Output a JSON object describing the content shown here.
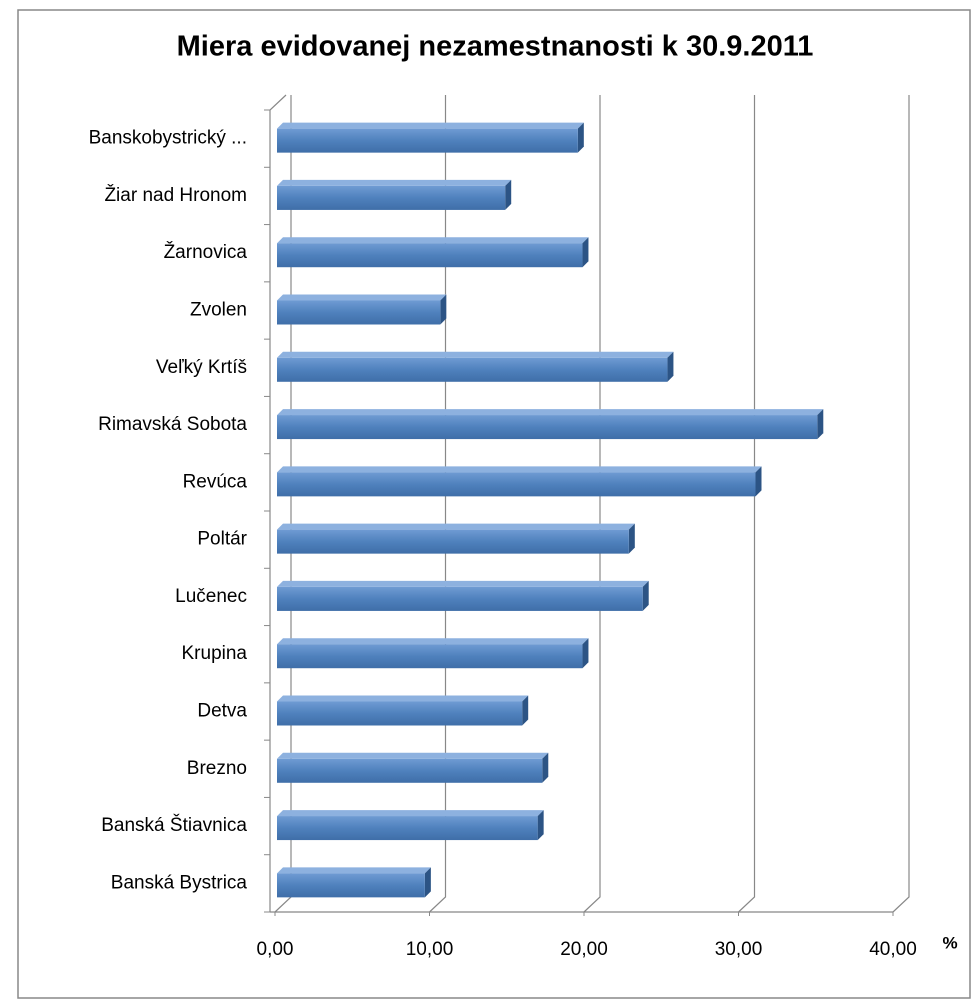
{
  "chart_data": {
    "type": "bar",
    "orientation": "horizontal",
    "title": "Miera evidovanej nezamestnanosti k 30.9.2011",
    "x_unit": "%",
    "categories": [
      "Banská Bystrica",
      "Banská Štiavnica",
      "Brezno",
      "Detva",
      "Krupina",
      "Lučenec",
      "Poltár",
      "Revúca",
      "Rimavská Sobota",
      "Veľký Krtíš",
      "Zvolen",
      "Žarnovica",
      "Žiar nad Hronom",
      "Banskobystrický ..."
    ],
    "values": [
      9.7,
      17.0,
      17.3,
      16.0,
      19.9,
      23.8,
      22.9,
      31.1,
      35.1,
      25.4,
      10.7,
      19.9,
      14.9,
      19.6
    ],
    "color": "#4f81bd",
    "xlim": [
      0,
      40
    ],
    "xticks": [
      {
        "value": 0,
        "label": "0,00"
      },
      {
        "value": 10,
        "label": "10,00"
      },
      {
        "value": 20,
        "label": "20,00"
      },
      {
        "value": 30,
        "label": "30,00"
      },
      {
        "value": 40,
        "label": "40,00"
      }
    ],
    "grid": true
  }
}
